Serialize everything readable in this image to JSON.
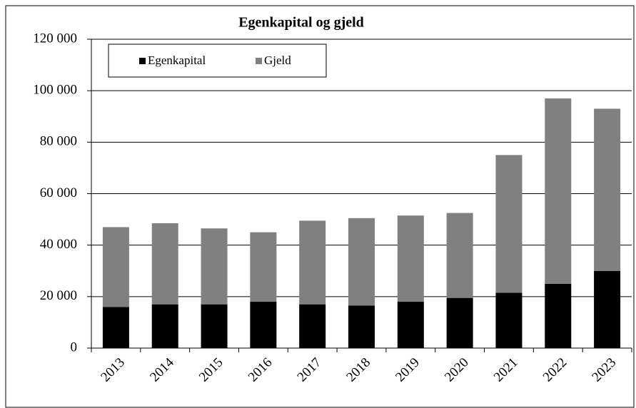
{
  "chart_data": {
    "type": "stacked_bar",
    "title": "Egenkapital og gjeld",
    "categories": [
      "2013",
      "2014",
      "2015",
      "2016",
      "2017",
      "2018",
      "2019",
      "2020",
      "2021",
      "2022",
      "2023"
    ],
    "series": [
      {
        "name": "Egenkapital",
        "color": "#000000",
        "values": [
          16000,
          17000,
          17000,
          18000,
          17000,
          16500,
          18000,
          19500,
          21500,
          25000,
          30000
        ]
      },
      {
        "name": "Gjeld",
        "color": "#808080",
        "values": [
          31000,
          31500,
          29500,
          27000,
          32500,
          34000,
          33500,
          33000,
          53500,
          72000,
          63000
        ]
      }
    ],
    "ylim": [
      0,
      120000
    ],
    "yticks": [
      0,
      {
        "value": 20000,
        "label": "20 000"
      },
      {
        "value": 40000,
        "label": "40 000"
      },
      {
        "value": 60000,
        "label": "60 000"
      },
      {
        "value": 80000,
        "label": "80 000"
      },
      {
        "value": 100000,
        "label": "100 000"
      },
      {
        "value": 120000,
        "label": "120 000"
      }
    ],
    "grid": true,
    "legend": "top-left"
  }
}
